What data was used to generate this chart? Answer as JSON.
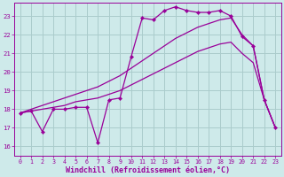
{
  "title": "",
  "xlabel": "Windchill (Refroidissement éolien,°C)",
  "ylabel": "",
  "xlim": [
    -0.5,
    23.5
  ],
  "ylim": [
    15.5,
    23.7
  ],
  "xticks": [
    0,
    1,
    2,
    3,
    4,
    5,
    6,
    7,
    8,
    9,
    10,
    11,
    12,
    13,
    14,
    15,
    16,
    17,
    18,
    19,
    20,
    21,
    22,
    23
  ],
  "yticks": [
    16,
    17,
    18,
    19,
    20,
    21,
    22,
    23
  ],
  "bg_color": "#ceeaea",
  "grid_color": "#aacccc",
  "line_color": "#990099",
  "jagged_x": [
    0,
    1,
    2,
    3,
    4,
    5,
    6,
    7,
    8,
    9,
    10,
    11,
    12,
    13,
    14,
    15,
    16,
    17,
    18,
    19,
    20,
    21,
    22,
    23
  ],
  "jagged_y": [
    17.8,
    17.9,
    16.8,
    18.0,
    18.0,
    18.1,
    18.1,
    16.2,
    18.5,
    18.6,
    20.8,
    22.9,
    22.8,
    23.3,
    23.5,
    23.3,
    23.2,
    23.2,
    23.3,
    23.0,
    21.9,
    21.4,
    18.5,
    17.0
  ],
  "smooth1_x": [
    0,
    1,
    2,
    3,
    4,
    5,
    6,
    7,
    8,
    9,
    10,
    11,
    12,
    13,
    14,
    15,
    16,
    17,
    18,
    19,
    20,
    21,
    22,
    23
  ],
  "smooth1_y": [
    17.8,
    18.0,
    18.2,
    18.4,
    18.6,
    18.8,
    19.0,
    19.2,
    19.5,
    19.8,
    20.2,
    20.6,
    21.0,
    21.4,
    21.8,
    22.1,
    22.4,
    22.6,
    22.8,
    22.9,
    22.0,
    21.4,
    18.5,
    17.0
  ],
  "smooth2_x": [
    0,
    1,
    2,
    3,
    4,
    5,
    6,
    7,
    8,
    9,
    10,
    11,
    12,
    13,
    14,
    15,
    16,
    17,
    18,
    19,
    20,
    21,
    22,
    23
  ],
  "smooth2_y": [
    17.8,
    17.9,
    18.0,
    18.1,
    18.2,
    18.4,
    18.5,
    18.6,
    18.8,
    19.0,
    19.3,
    19.6,
    19.9,
    20.2,
    20.5,
    20.8,
    21.1,
    21.3,
    21.5,
    21.6,
    21.0,
    20.5,
    18.5,
    17.0
  ]
}
